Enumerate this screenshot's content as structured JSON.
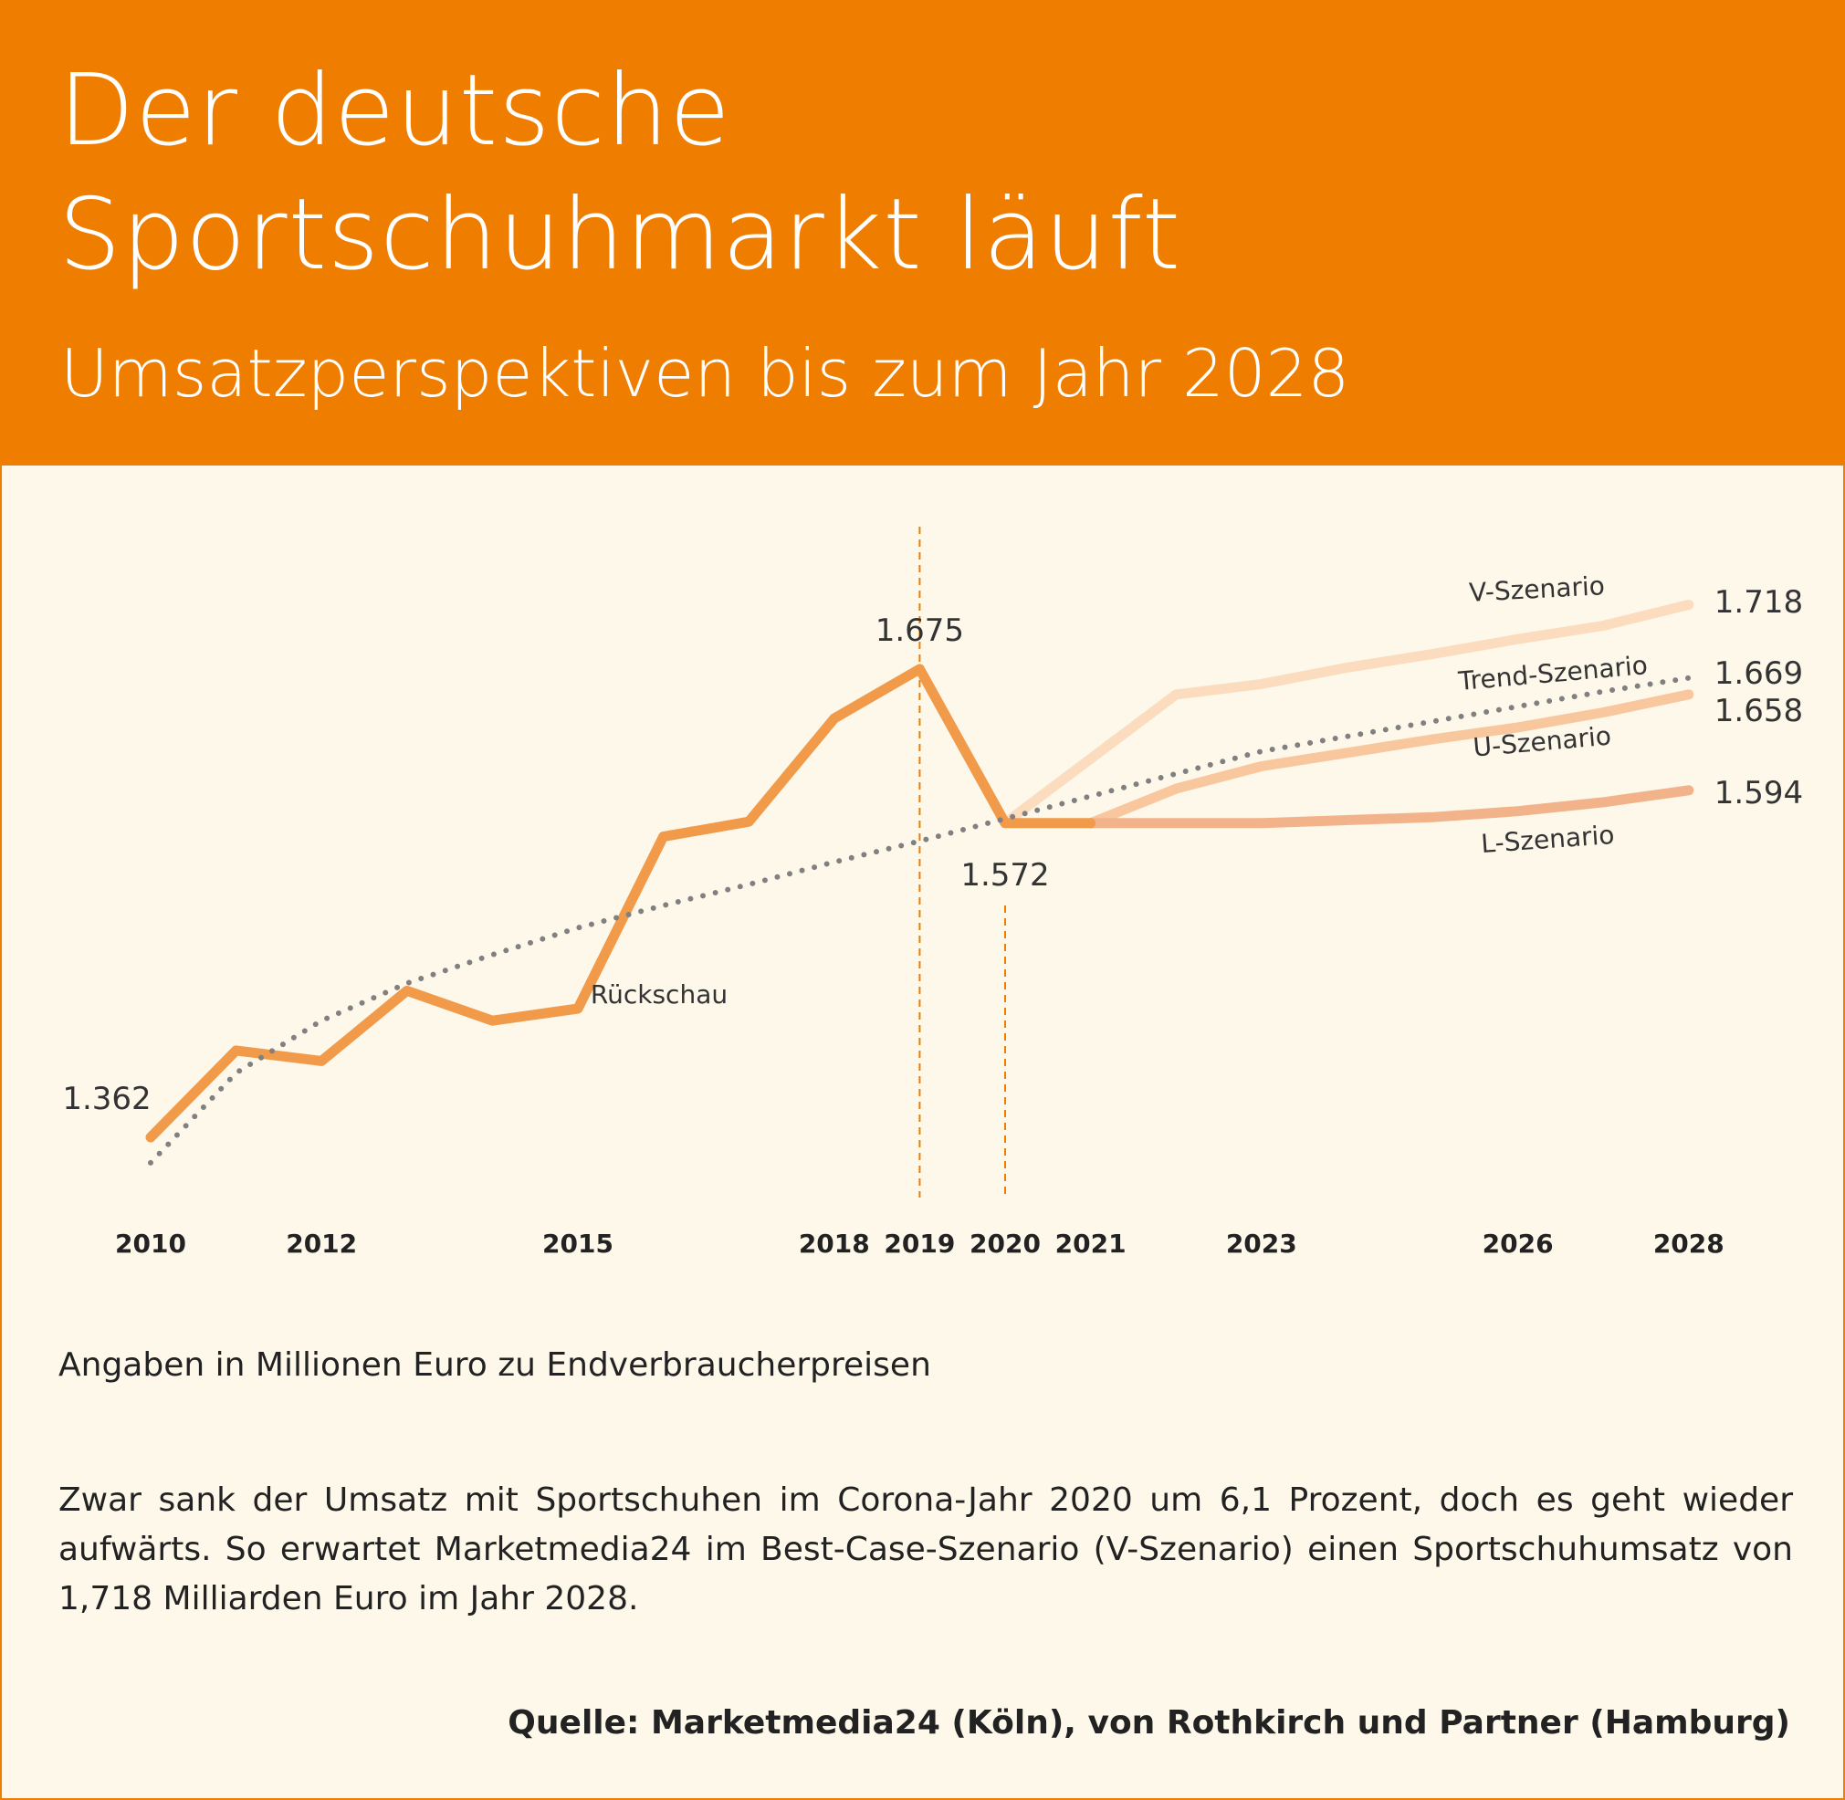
{
  "header": {
    "title": "Der deutsche\nSportschuhmarkt läuft",
    "subtitle": "Umsatzperspektiven bis zum Jahr 2028"
  },
  "colors": {
    "accent": "#ef7d00",
    "background": "#fdf8ea",
    "history": "#f09a4a",
    "trend": "#808080",
    "v_scenario": "#fcdcbf",
    "u_scenario": "#f9c79e",
    "l_scenario": "#f2b38a",
    "marker_line": "#ef7d00"
  },
  "chart_data": {
    "type": "line",
    "x_ticks": [
      2010,
      2012,
      2015,
      2018,
      2019,
      2020,
      2021,
      2023,
      2026,
      2028
    ],
    "ylim": [
      1330,
      1740
    ],
    "grid": false,
    "reference_lines": [
      2019,
      2020
    ],
    "series": [
      {
        "name": "Rückschau",
        "style": "history",
        "points": [
          [
            2010,
            1362
          ],
          [
            2011,
            1420
          ],
          [
            2012,
            1413
          ],
          [
            2013,
            1460
          ],
          [
            2014,
            1440
          ],
          [
            2015,
            1448
          ],
          [
            2016,
            1563
          ],
          [
            2017,
            1573
          ],
          [
            2018,
            1642
          ],
          [
            2019,
            1675
          ],
          [
            2020,
            1572
          ],
          [
            2021,
            1572
          ]
        ]
      },
      {
        "name": "Trend-Szenario",
        "style": "trend",
        "points": [
          [
            2010,
            1345
          ],
          [
            2011,
            1405
          ],
          [
            2012,
            1440
          ],
          [
            2013,
            1465
          ],
          [
            2014,
            1484
          ],
          [
            2015,
            1502
          ],
          [
            2016,
            1517
          ],
          [
            2017,
            1531
          ],
          [
            2018,
            1546
          ],
          [
            2019,
            1560
          ],
          [
            2020,
            1575
          ],
          [
            2021,
            1590
          ],
          [
            2022,
            1605
          ],
          [
            2023,
            1620
          ],
          [
            2024,
            1630
          ],
          [
            2025,
            1640
          ],
          [
            2026,
            1650
          ],
          [
            2027,
            1660
          ],
          [
            2028,
            1669
          ]
        ]
      },
      {
        "name": "V-Szenario",
        "style": "v_scenario",
        "points": [
          [
            2020,
            1572
          ],
          [
            2021,
            1615
          ],
          [
            2022,
            1658
          ],
          [
            2023,
            1665
          ],
          [
            2024,
            1676
          ],
          [
            2025,
            1685
          ],
          [
            2026,
            1695
          ],
          [
            2027,
            1704
          ],
          [
            2028,
            1718
          ]
        ]
      },
      {
        "name": "U-Szenario",
        "style": "u_scenario",
        "points": [
          [
            2021,
            1572
          ],
          [
            2022,
            1595
          ],
          [
            2023,
            1610
          ],
          [
            2024,
            1619
          ],
          [
            2025,
            1628
          ],
          [
            2026,
            1636
          ],
          [
            2027,
            1646
          ],
          [
            2028,
            1658
          ]
        ]
      },
      {
        "name": "L-Szenario",
        "style": "l_scenario",
        "points": [
          [
            2021,
            1572
          ],
          [
            2022,
            1572
          ],
          [
            2023,
            1572
          ],
          [
            2024,
            1574
          ],
          [
            2025,
            1576
          ],
          [
            2026,
            1580
          ],
          [
            2027,
            1586
          ],
          [
            2028,
            1594
          ]
        ]
      }
    ],
    "value_labels": [
      {
        "x": 2010,
        "text": "1.362"
      },
      {
        "x": 2019,
        "text": "1.675"
      },
      {
        "x": 2020,
        "text": "1.572"
      },
      {
        "x": 2028,
        "series": "V-Szenario",
        "text": "1.718"
      },
      {
        "x": 2028,
        "series": "Trend-Szenario",
        "text": "1.669"
      },
      {
        "x": 2028,
        "series": "U-Szenario",
        "text": "1.658"
      },
      {
        "x": 2028,
        "series": "L-Szenario",
        "text": "1.594"
      }
    ]
  },
  "note": "Angaben in Millionen Euro zu Endverbraucherpreisen",
  "body_text": "Zwar sank der Umsatz mit Sportschuhen im Corona-Jahr 2020 um 6,1 Prozent, doch es geht wieder aufwärts. So erwartet Marketmedia24 im Best-Case-Szenario (V-Szenario) einen Sport­schuhumsatz von 1,718 Milliarden Euro im Jahr 2028.",
  "source": "Quelle: Marketmedia24 (Köln), von Rothkirch und Partner (Hamburg)"
}
